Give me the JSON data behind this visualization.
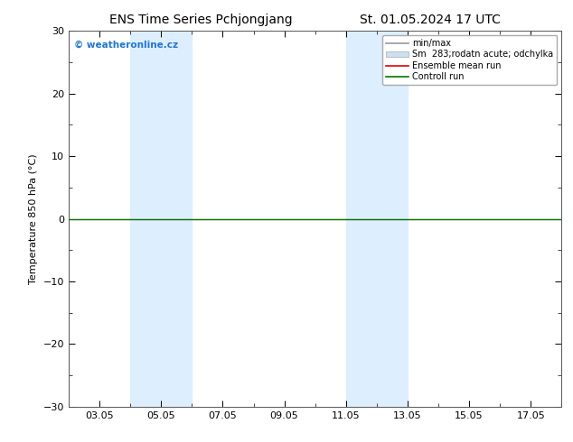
{
  "title_left": "ENS Time Series Pchjongjang",
  "title_right": "St. 01.05.2024 17 UTC",
  "ylabel": "Temperature 850 hPa (°C)",
  "ylim": [
    -30,
    30
  ],
  "yticks": [
    -30,
    -20,
    -10,
    0,
    10,
    20,
    30
  ],
  "xlim": [
    2.0,
    18.0
  ],
  "xtick_labels": [
    "03.05",
    "05.05",
    "07.05",
    "09.05",
    "11.05",
    "13.05",
    "15.05",
    "17.05"
  ],
  "xtick_positions": [
    3,
    5,
    7,
    9,
    11,
    13,
    15,
    17
  ],
  "shade_regions": [
    {
      "x_start": 4.0,
      "x_end": 6.0
    },
    {
      "x_start": 11.0,
      "x_end": 13.0
    }
  ],
  "shade_color": "#ddeeff",
  "control_run_y": 0.0,
  "control_run_color": "#007700",
  "ensemble_mean_color": "#dd0000",
  "minmax_color": "#999999",
  "spread_color": "#cce0f0",
  "watermark_text": "© weatheronline.cz",
  "watermark_color": "#2277cc",
  "legend_labels": [
    "min/max",
    "Sm  283;rodatn acute; odchylka",
    "Ensemble mean run",
    "Controll run"
  ],
  "legend_colors": [
    "#999999",
    "#cce0f0",
    "#dd0000",
    "#007700"
  ],
  "bg_color": "#ffffff",
  "plot_bg_color": "#ffffff",
  "font_size": 8,
  "title_font_size": 10
}
